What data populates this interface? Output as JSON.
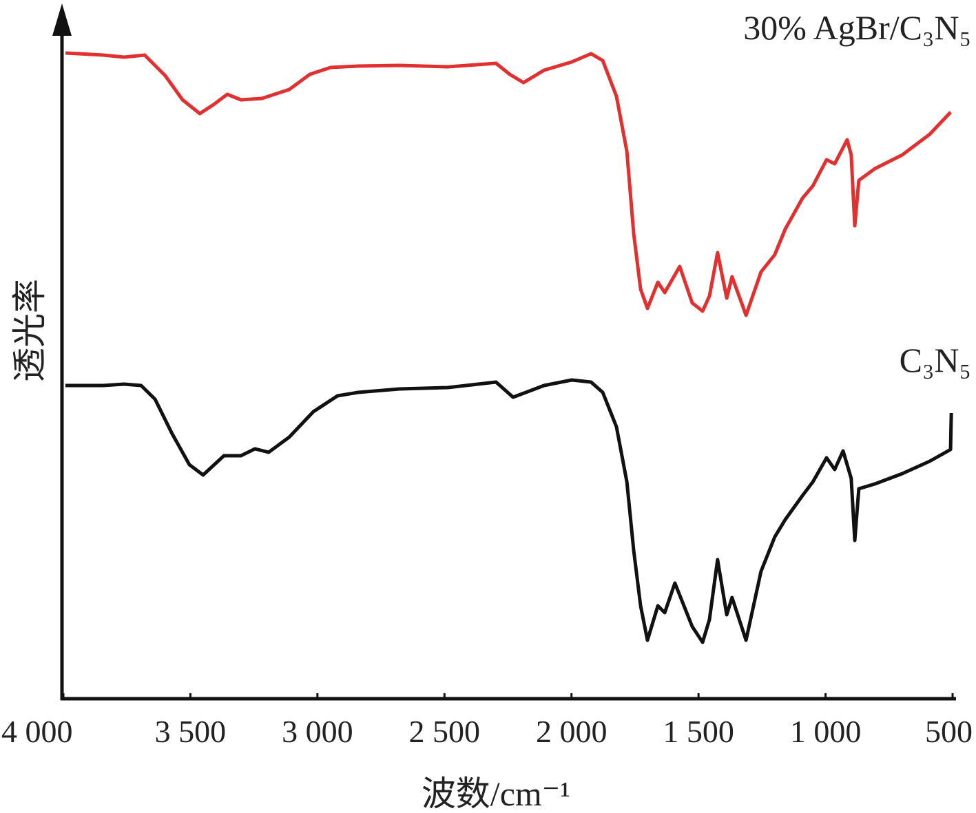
{
  "chart_data": {
    "type": "line",
    "x_label": "波数/cm⁻¹",
    "y_label": "透光率",
    "xlim": [
      4000,
      500
    ],
    "xticks": [
      {
        "value": 4000,
        "label": "4 000"
      },
      {
        "value": 3500,
        "label": "3 500"
      },
      {
        "value": 3000,
        "label": "3 000"
      },
      {
        "value": 2500,
        "label": "2 500"
      },
      {
        "value": 2000,
        "label": "2 000"
      },
      {
        "value": 1500,
        "label": "1 500"
      },
      {
        "value": 1000,
        "label": "1 000"
      },
      500
    ],
    "ylim": [
      0,
      100
    ],
    "series": [
      {
        "name": "30% AgBr/C₃N₅",
        "color": "#e03030",
        "x": [
          3992,
          3843,
          3761,
          3680,
          3599,
          3531,
          3463,
          3409,
          3355,
          3301,
          3219,
          3111,
          3030,
          2948,
          2840,
          2677,
          2487,
          2297,
          2243,
          2189,
          2108,
          1999,
          1923,
          1877,
          1823,
          1782,
          1755,
          1728,
          1701,
          1660,
          1633,
          1574,
          1525,
          1484,
          1457,
          1425,
          1389,
          1368,
          1313,
          1254,
          1200,
          1159,
          1091,
          1050,
          996,
          964,
          915,
          899,
          885,
          869,
          806,
          698,
          590,
          508
        ],
        "values": [
          93.8,
          93.5,
          93.2,
          93.5,
          90.5,
          87,
          85,
          86.3,
          87.8,
          87,
          87.2,
          88.5,
          90.7,
          91.7,
          91.9,
          92,
          91.8,
          92.3,
          90.7,
          89.5,
          91.3,
          92.5,
          93.7,
          92.7,
          87.5,
          79.5,
          67.5,
          59.5,
          56.7,
          60.5,
          59,
          62.8,
          57.5,
          56.3,
          58.5,
          64.8,
          58.2,
          61.3,
          55.7,
          62,
          64.5,
          68.2,
          72.7,
          74.5,
          78.3,
          77.7,
          81.2,
          79,
          68.7,
          75.3,
          77,
          79,
          82,
          85.2
        ]
      },
      {
        "name": "C₃N₅",
        "color": "#111111",
        "x": [
          3992,
          3843,
          3761,
          3694,
          3639,
          3572,
          3504,
          3450,
          3368,
          3301,
          3246,
          3192,
          3111,
          3016,
          2921,
          2840,
          2677,
          2487,
          2297,
          2230,
          2108,
          1999,
          1923,
          1877,
          1823,
          1782,
          1755,
          1728,
          1701,
          1660,
          1633,
          1593,
          1525,
          1484,
          1457,
          1425,
          1389,
          1368,
          1313,
          1254,
          1200,
          1159,
          1091,
          1050,
          996,
          964,
          931,
          899,
          885,
          869,
          806,
          698,
          590,
          508,
          505
        ],
        "values": [
          45.5,
          45.5,
          45.7,
          45.5,
          43.5,
          38.5,
          34,
          32.5,
          35.3,
          35.3,
          36.3,
          35.8,
          38,
          41.7,
          44,
          44.5,
          45,
          45.2,
          46,
          43.8,
          45.5,
          46.3,
          46,
          44.5,
          39.5,
          31.5,
          21.5,
          13.5,
          8.5,
          13.5,
          12.5,
          16.8,
          10.5,
          8.2,
          11.5,
          20.2,
          12.2,
          14.7,
          8.5,
          18.5,
          23.5,
          26,
          29.5,
          31.5,
          35,
          33.3,
          36,
          32,
          23,
          30.5,
          31.2,
          32.7,
          34.5,
          36.2,
          41.5
        ]
      }
    ]
  }
}
